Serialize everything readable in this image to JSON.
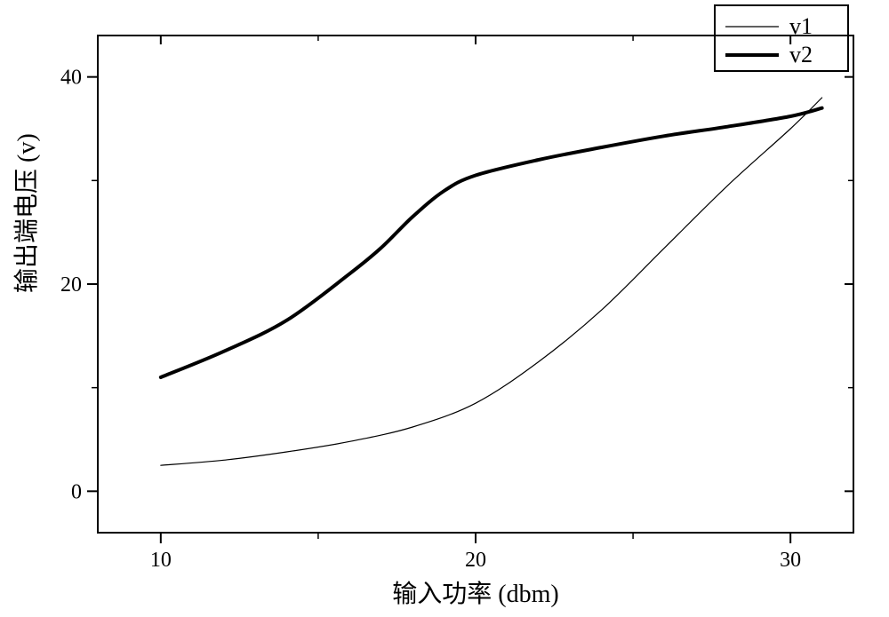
{
  "chart": {
    "type": "line",
    "background_color": "#ffffff",
    "axis_color": "#000000",
    "box_linewidth": 2,
    "xlim": [
      8,
      32
    ],
    "ylim": [
      -4,
      44
    ],
    "xtick_major": [
      10,
      20,
      30
    ],
    "xtick_all": [
      10,
      15,
      20,
      25,
      30
    ],
    "ytick_major": [
      0,
      20,
      40
    ],
    "ytick_all": [
      0,
      10,
      20,
      30,
      40
    ],
    "xlabel": "输入功率 (dbm)",
    "ylabel_main": "输出端电压",
    "ylabel_unit": "(v)",
    "tick_label_fontsize": 24,
    "axis_title_fontsize": 28,
    "legend": {
      "position": "top-right",
      "entries": [
        "v1",
        "v2"
      ],
      "box_stroke": "#000000",
      "fontsize": 26
    },
    "series": [
      {
        "name": "v1",
        "color": "#000000",
        "linewidth": 1.2,
        "x": [
          10,
          12,
          14,
          16,
          18,
          20,
          22,
          24,
          26,
          28,
          30,
          31
        ],
        "y": [
          2.5,
          3.0,
          3.8,
          4.8,
          6.2,
          8.5,
          12.5,
          17.5,
          23.5,
          29.5,
          35.0,
          38.0
        ]
      },
      {
        "name": "v2",
        "color": "#000000",
        "linewidth": 4,
        "x": [
          10,
          12,
          14,
          16,
          17,
          18,
          19,
          20,
          22,
          24,
          26,
          28,
          30,
          31
        ],
        "y": [
          11.0,
          13.5,
          16.5,
          21.0,
          23.5,
          26.5,
          29.0,
          30.5,
          32.0,
          33.2,
          34.3,
          35.2,
          36.2,
          37.0
        ]
      }
    ]
  }
}
